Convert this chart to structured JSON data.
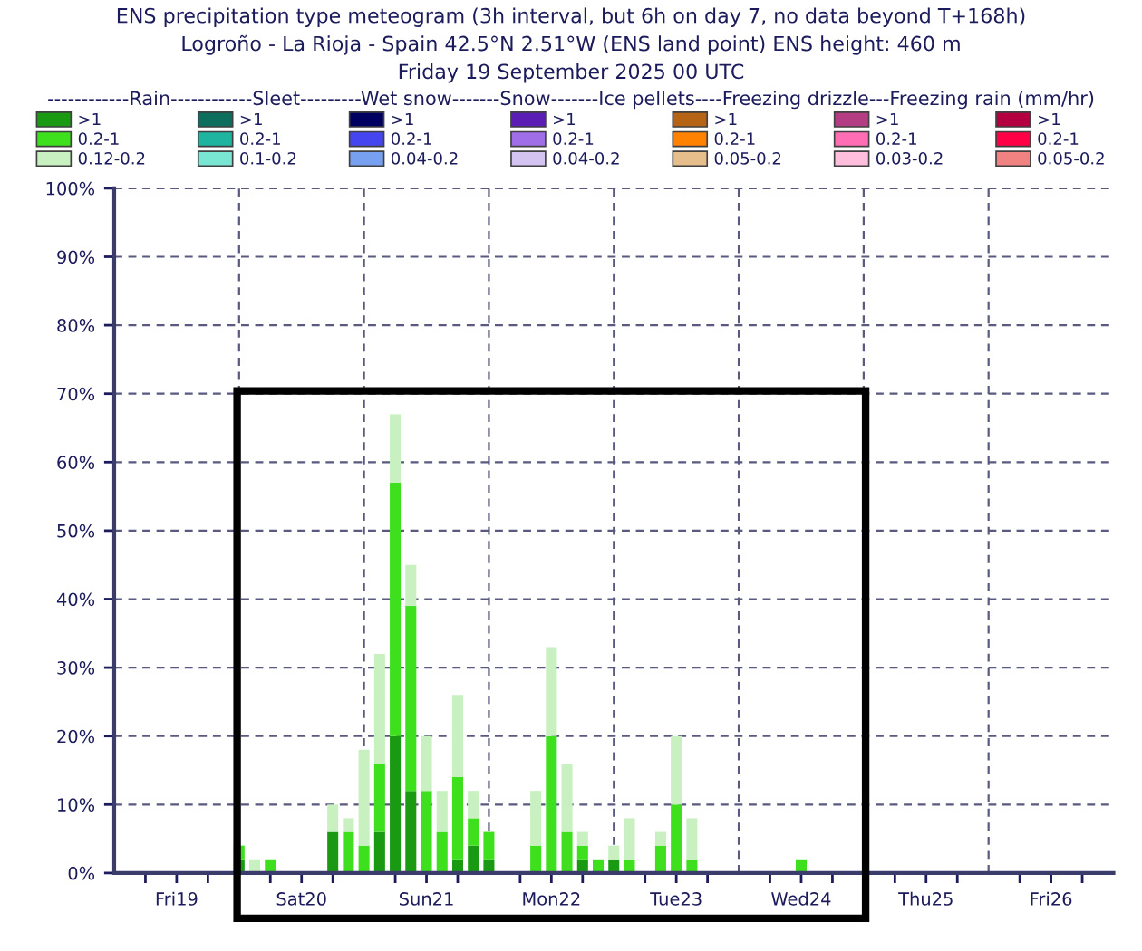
{
  "chart_data": {
    "type": "bar",
    "stacked": true,
    "title": "ENS precipitation type meteogram (3h interval, but 6h on day 7, no data beyond T+168h)",
    "subtitle": "Logroño - La Rioja - Spain 42.5°N 2.51°W (ENS land point) ENS height: 460 m\nFriday 19 September 2025 00 UTC",
    "legend_title": "------------Rain------------Sleet---------Wet snow-------Snow-------Ice pellets----Freezing drizzle---Freezing rain (mm/hr)",
    "x": [
      "2025-09-20T00:00",
      "2025-09-20T03:00",
      "2025-09-20T06:00",
      "2025-09-20T18:00",
      "2025-09-20T21:00",
      "2025-09-21T00:00",
      "2025-09-21T03:00",
      "2025-09-21T06:00",
      "2025-09-21T09:00",
      "2025-09-21T12:00",
      "2025-09-21T15:00",
      "2025-09-21T18:00",
      "2025-09-21T21:00",
      "2025-09-22T00:00",
      "2025-09-22T09:00",
      "2025-09-22T12:00",
      "2025-09-22T15:00",
      "2025-09-22T18:00",
      "2025-09-22T21:00",
      "2025-09-23T00:00",
      "2025-09-23T03:00",
      "2025-09-23T09:00",
      "2025-09-23T12:00",
      "2025-09-23T15:00",
      "2025-09-24T12:00"
    ],
    "series": [
      {
        "name": ">1",
        "color": "#1a9a12",
        "values": [
          2,
          null,
          null,
          6,
          null,
          null,
          6,
          20,
          12,
          null,
          null,
          2,
          4,
          2,
          null,
          null,
          null,
          2,
          null,
          2,
          null,
          null,
          null,
          null,
          null
        ]
      },
      {
        "name": "0.2-1",
        "color": "#3ee01e",
        "values": [
          2,
          null,
          2,
          null,
          6,
          4,
          10,
          37,
          27,
          12,
          6,
          12,
          4,
          4,
          4,
          20,
          6,
          2,
          2,
          null,
          2,
          4,
          10,
          2,
          2
        ]
      },
      {
        "name": "0.12-0.2",
        "color": "#c8f0c0",
        "values": [
          null,
          2,
          null,
          4,
          2,
          14,
          16,
          10,
          6,
          8,
          6,
          12,
          4,
          null,
          8,
          13,
          10,
          2,
          null,
          2,
          6,
          2,
          10,
          6,
          null
        ]
      },
      {
        "name": ">1",
        "color": "#0e6e5e",
        "values": [
          null,
          null,
          null,
          null,
          null,
          null,
          null,
          null,
          null,
          null,
          null,
          null,
          null,
          null,
          null,
          null,
          null,
          null,
          null,
          null,
          null,
          null,
          null,
          null,
          null
        ]
      },
      {
        "name": "0.2-1",
        "color": "#1eb4a0",
        "values": [
          null,
          null,
          null,
          null,
          null,
          null,
          null,
          null,
          null,
          null,
          null,
          null,
          null,
          null,
          null,
          null,
          null,
          null,
          null,
          null,
          null,
          null,
          null,
          null,
          null
        ]
      },
      {
        "name": "0.1-0.2",
        "color": "#78e6d2",
        "values": [
          null,
          null,
          null,
          null,
          null,
          null,
          null,
          null,
          null,
          null,
          null,
          null,
          null,
          null,
          null,
          null,
          null,
          null,
          null,
          null,
          null,
          null,
          null,
          null,
          null
        ]
      },
      {
        "name": ">1",
        "color": "#000060",
        "values": [
          null,
          null,
          null,
          null,
          null,
          null,
          null,
          null,
          null,
          null,
          null,
          null,
          null,
          null,
          null,
          null,
          null,
          null,
          null,
          null,
          null,
          null,
          null,
          null,
          null
        ]
      },
      {
        "name": "0.2-1",
        "color": "#4646f0",
        "values": [
          null,
          null,
          null,
          null,
          null,
          null,
          null,
          null,
          null,
          null,
          null,
          null,
          null,
          null,
          null,
          null,
          null,
          null,
          null,
          null,
          null,
          null,
          null,
          null,
          null
        ]
      },
      {
        "name": "0.04-0.2",
        "color": "#78a0f0",
        "values": [
          null,
          null,
          null,
          null,
          null,
          null,
          null,
          null,
          null,
          null,
          null,
          null,
          null,
          null,
          null,
          null,
          null,
          null,
          null,
          null,
          null,
          null,
          null,
          null,
          null
        ]
      },
      {
        "name": ">1",
        "color": "#5a1eb4",
        "values": [
          null,
          null,
          null,
          null,
          null,
          null,
          null,
          null,
          null,
          null,
          null,
          null,
          null,
          null,
          null,
          null,
          null,
          null,
          null,
          null,
          null,
          null,
          null,
          null,
          null
        ]
      },
      {
        "name": "0.2-1",
        "color": "#a06ee6",
        "values": [
          null,
          null,
          null,
          null,
          null,
          null,
          null,
          null,
          null,
          null,
          null,
          null,
          null,
          null,
          null,
          null,
          null,
          null,
          null,
          null,
          null,
          null,
          null,
          null,
          null
        ]
      },
      {
        "name": "0.04-0.2",
        "color": "#d2c3f0",
        "values": [
          null,
          null,
          null,
          null,
          null,
          null,
          null,
          null,
          null,
          null,
          null,
          null,
          null,
          null,
          null,
          null,
          null,
          null,
          null,
          null,
          null,
          null,
          null,
          null,
          null
        ]
      },
      {
        "name": ">1",
        "color": "#b46414",
        "values": [
          null,
          null,
          null,
          null,
          null,
          null,
          null,
          null,
          null,
          null,
          null,
          null,
          null,
          null,
          null,
          null,
          null,
          null,
          null,
          null,
          null,
          null,
          null,
          null,
          null
        ]
      },
      {
        "name": "0.2-1",
        "color": "#ff8200",
        "values": [
          null,
          null,
          null,
          null,
          null,
          null,
          null,
          null,
          null,
          null,
          null,
          null,
          null,
          null,
          null,
          null,
          null,
          null,
          null,
          null,
          null,
          null,
          null,
          null,
          null
        ]
      },
      {
        "name": "0.05-0.2",
        "color": "#e6be8c",
        "values": [
          null,
          null,
          null,
          null,
          null,
          null,
          null,
          null,
          null,
          null,
          null,
          null,
          null,
          null,
          null,
          null,
          null,
          null,
          null,
          null,
          null,
          null,
          null,
          null,
          null
        ]
      },
      {
        "name": ">1",
        "color": "#b43c82",
        "values": [
          null,
          null,
          null,
          null,
          null,
          null,
          null,
          null,
          null,
          null,
          null,
          null,
          null,
          null,
          null,
          null,
          null,
          null,
          null,
          null,
          null,
          null,
          null,
          null,
          null
        ]
      },
      {
        "name": "0.2-1",
        "color": "#ff6eb4",
        "values": [
          null,
          null,
          null,
          null,
          null,
          null,
          null,
          null,
          null,
          null,
          null,
          null,
          null,
          null,
          null,
          null,
          null,
          null,
          null,
          null,
          null,
          null,
          null,
          null,
          null
        ]
      },
      {
        "name": "0.03-0.2",
        "color": "#ffbedc",
        "values": [
          null,
          null,
          null,
          null,
          null,
          null,
          null,
          null,
          null,
          null,
          null,
          null,
          null,
          null,
          null,
          null,
          null,
          null,
          null,
          null,
          null,
          null,
          null,
          null,
          null
        ]
      },
      {
        "name": ">1",
        "color": "#b40041",
        "values": [
          null,
          null,
          null,
          null,
          null,
          null,
          null,
          null,
          null,
          null,
          null,
          null,
          null,
          null,
          null,
          null,
          null,
          null,
          null,
          null,
          null,
          null,
          null,
          null,
          null
        ]
      },
      {
        "name": "0.2-1",
        "color": "#ff0046",
        "values": [
          null,
          null,
          null,
          null,
          null,
          null,
          null,
          null,
          null,
          null,
          null,
          null,
          null,
          null,
          null,
          null,
          null,
          null,
          null,
          null,
          null,
          null,
          null,
          null,
          null
        ]
      },
      {
        "name": "0.05-0.2",
        "color": "#f08282",
        "values": [
          null,
          null,
          null,
          null,
          null,
          null,
          null,
          null,
          null,
          null,
          null,
          null,
          null,
          null,
          null,
          null,
          null,
          null,
          null,
          null,
          null,
          null,
          null,
          null,
          null
        ]
      }
    ],
    "xlim": [
      "2025-09-19T00:00",
      "2025-09-27T00:00"
    ],
    "xticks": [
      {
        "value": "2025-09-19T06:00",
        "label": null
      },
      {
        "value": "2025-09-19T12:00",
        "label": "Fri19"
      },
      {
        "value": "2025-09-19T18:00",
        "label": null
      },
      {
        "value": "2025-09-20T06:00",
        "label": null
      },
      {
        "value": "2025-09-20T12:00",
        "label": "Sat20"
      },
      {
        "value": "2025-09-20T18:00",
        "label": null
      },
      {
        "value": "2025-09-21T06:00",
        "label": null
      },
      {
        "value": "2025-09-21T12:00",
        "label": "Sun21"
      },
      {
        "value": "2025-09-21T18:00",
        "label": null
      },
      {
        "value": "2025-09-22T06:00",
        "label": null
      },
      {
        "value": "2025-09-22T12:00",
        "label": "Mon22"
      },
      {
        "value": "2025-09-22T18:00",
        "label": null
      },
      {
        "value": "2025-09-23T06:00",
        "label": null
      },
      {
        "value": "2025-09-23T12:00",
        "label": "Tue23"
      },
      {
        "value": "2025-09-23T18:00",
        "label": null
      },
      {
        "value": "2025-09-24T06:00",
        "label": null
      },
      {
        "value": "2025-09-24T12:00",
        "label": "Wed24"
      },
      {
        "value": "2025-09-24T18:00",
        "label": null
      },
      {
        "value": "2025-09-25T06:00",
        "label": null
      },
      {
        "value": "2025-09-25T12:00",
        "label": "Thu25"
      },
      {
        "value": "2025-09-25T18:00",
        "label": null
      },
      {
        "value": "2025-09-26T06:00",
        "label": null
      },
      {
        "value": "2025-09-26T12:00",
        "label": "Fri26"
      },
      {
        "value": "2025-09-26T18:00",
        "label": null
      }
    ],
    "ylim": [
      0,
      100
    ],
    "yticks": [
      {
        "value": 0,
        "label": "0%"
      },
      {
        "value": 10,
        "label": "10%"
      },
      {
        "value": 20,
        "label": "20%"
      },
      {
        "value": 30,
        "label": "30%"
      },
      {
        "value": 40,
        "label": "40%"
      },
      {
        "value": 50,
        "label": "50%"
      },
      {
        "value": 60,
        "label": "60%"
      },
      {
        "value": 70,
        "label": "70%"
      },
      {
        "value": 80,
        "label": "80%"
      },
      {
        "value": 90,
        "label": "90%"
      },
      {
        "value": 100,
        "label": "100%"
      }
    ],
    "ref_lines": [
      {
        "axis": "x",
        "value": "2025-09-20T00:00",
        "line_style": "dashed",
        "color": "#5a5a80"
      },
      {
        "axis": "x",
        "value": "2025-09-21T00:00",
        "line_style": "dashed",
        "color": "#5a5a80"
      },
      {
        "axis": "x",
        "value": "2025-09-22T00:00",
        "line_style": "dashed",
        "color": "#5a5a80"
      },
      {
        "axis": "x",
        "value": "2025-09-23T00:00",
        "line_style": "dashed",
        "color": "#5a5a80"
      },
      {
        "axis": "x",
        "value": "2025-09-24T00:00",
        "line_style": "dashed",
        "color": "#5a5a80"
      },
      {
        "axis": "x",
        "value": "2025-09-25T00:00",
        "line_style": "dashed",
        "color": "#5a5a80"
      },
      {
        "axis": "x",
        "value": "2025-09-26T00:00",
        "line_style": "dashed",
        "color": "#5a5a80"
      }
    ],
    "grid": "y",
    "legend": "top"
  }
}
